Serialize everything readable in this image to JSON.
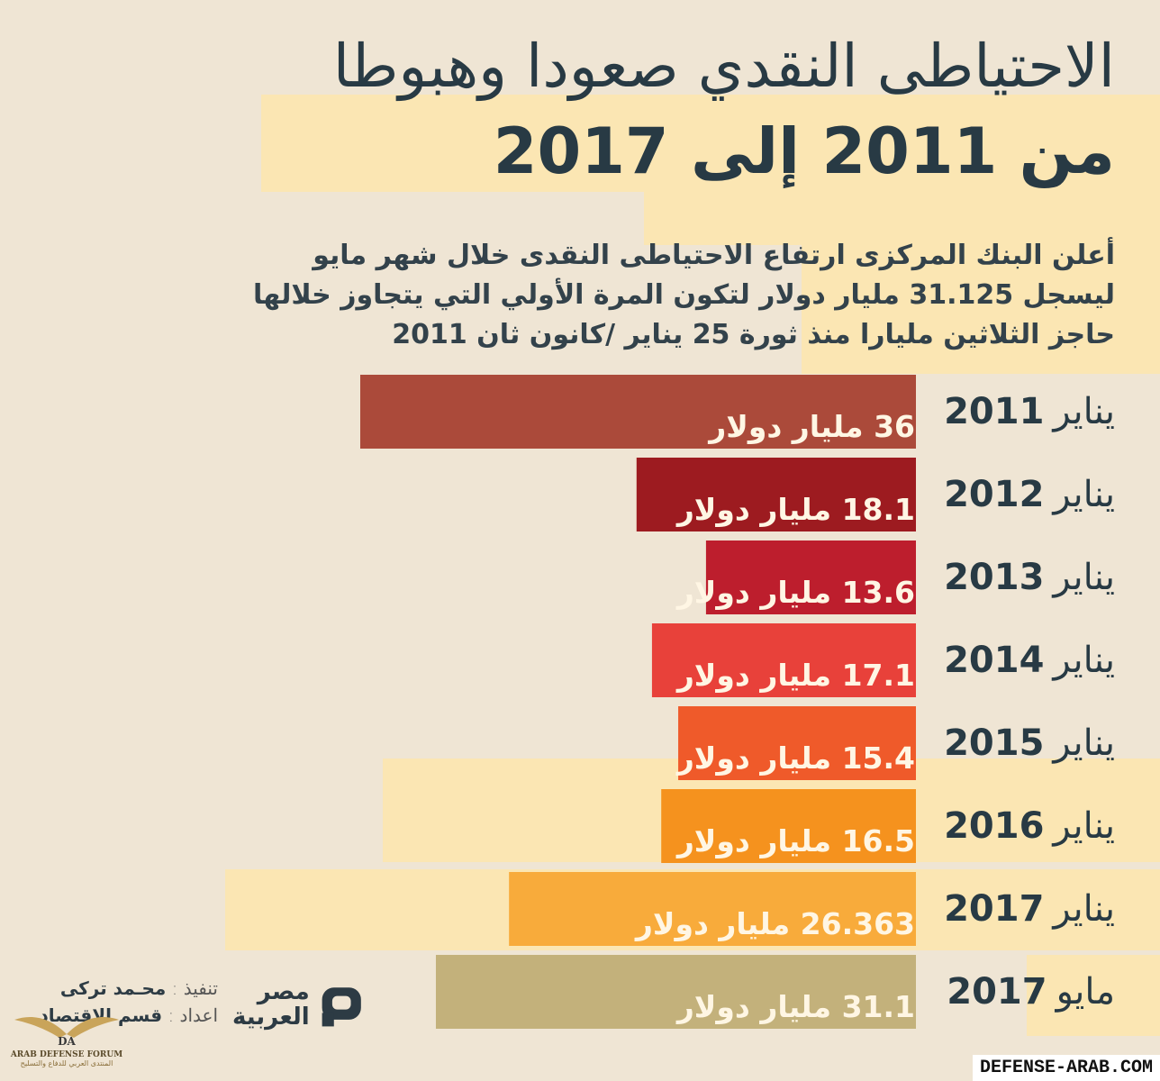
{
  "header": {
    "title_line1": "الاحتياطى النقدي صعودا وهبوطا",
    "title_line2": "من 2011 إلى 2017",
    "subtitle_lines": [
      "أعلن البنك المركزى ارتفاع الاحتياطى النقدى خلال شهر مايو",
      "ليسجل 31.125 مليار دولار لتكون المرة الأولي التي يتجاوز خلالها",
      "حاجز الثلاثين مليارا منذ ثورة 25 يناير /كانون ثان 2011"
    ]
  },
  "chart_data": {
    "type": "bar",
    "orientation": "horizontal",
    "categories": [
      "يناير 2011",
      "يناير 2012",
      "يناير 2013",
      "يناير 2014",
      "يناير 2015",
      "يناير 2016",
      "يناير 2017",
      "مايو 2017"
    ],
    "months": [
      "يناير",
      "يناير",
      "يناير",
      "يناير",
      "يناير",
      "يناير",
      "يناير",
      "مايو"
    ],
    "years": [
      "2011",
      "2012",
      "2013",
      "2014",
      "2015",
      "2016",
      "2017",
      "2017"
    ],
    "values": [
      36,
      18.1,
      13.6,
      17.1,
      15.4,
      16.5,
      26.363,
      31.1
    ],
    "value_labels": [
      "36 مليار دولار",
      "18.1 مليار دولار",
      "13.6 مليار دولار",
      "17.1 مليار دولار",
      "15.4 مليار دولار",
      "16.5 مليار دولار",
      "26.363 مليار دولار",
      "31.1 مليار دولار"
    ],
    "colors": [
      "#ab4a3a",
      "#9d1b20",
      "#bd1e2d",
      "#e8413a",
      "#ef5a2a",
      "#f5921e",
      "#f8ab3b",
      "#c3b17b"
    ],
    "unit": "مليار دولار",
    "xlim": [
      0,
      36
    ]
  },
  "credits": {
    "execution_key": "تنفيذ :",
    "execution_name": "محـمد تركى",
    "prep_key": "اعداد :",
    "prep_name": "قسم الاقتصاد"
  },
  "logo": {
    "line1": "مصر",
    "line2": "العربية"
  },
  "forum": {
    "badge": "DA",
    "name": "ARAB DEFENSE FORUM",
    "sub": "المنتدى العربي للدفاع والتسليح"
  },
  "watermark": "DEFENSE-ARAB.COM"
}
